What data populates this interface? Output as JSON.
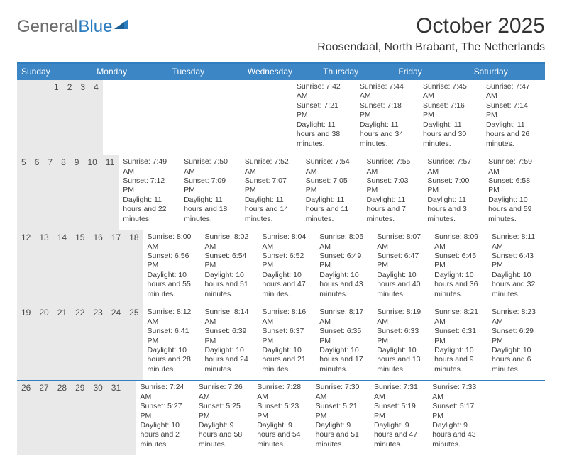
{
  "brand": {
    "gray": "General",
    "blue": "Blue"
  },
  "title": "October 2025",
  "location": "Roosendaal, North Brabant, The Netherlands",
  "colors": {
    "header_bg": "#3d86c6",
    "header_border": "#2f7fc0",
    "daynum_bg": "#e9e9e9",
    "text": "#3b3b3b"
  },
  "dow": [
    "Sunday",
    "Monday",
    "Tuesday",
    "Wednesday",
    "Thursday",
    "Friday",
    "Saturday"
  ],
  "weeks": [
    [
      {
        "n": "",
        "sr": "",
        "ss": "",
        "dl": ""
      },
      {
        "n": "",
        "sr": "",
        "ss": "",
        "dl": ""
      },
      {
        "n": "",
        "sr": "",
        "ss": "",
        "dl": ""
      },
      {
        "n": "1",
        "sr": "Sunrise: 7:42 AM",
        "ss": "Sunset: 7:21 PM",
        "dl": "Daylight: 11 hours and 38 minutes."
      },
      {
        "n": "2",
        "sr": "Sunrise: 7:44 AM",
        "ss": "Sunset: 7:18 PM",
        "dl": "Daylight: 11 hours and 34 minutes."
      },
      {
        "n": "3",
        "sr": "Sunrise: 7:45 AM",
        "ss": "Sunset: 7:16 PM",
        "dl": "Daylight: 11 hours and 30 minutes."
      },
      {
        "n": "4",
        "sr": "Sunrise: 7:47 AM",
        "ss": "Sunset: 7:14 PM",
        "dl": "Daylight: 11 hours and 26 minutes."
      }
    ],
    [
      {
        "n": "5",
        "sr": "Sunrise: 7:49 AM",
        "ss": "Sunset: 7:12 PM",
        "dl": "Daylight: 11 hours and 22 minutes."
      },
      {
        "n": "6",
        "sr": "Sunrise: 7:50 AM",
        "ss": "Sunset: 7:09 PM",
        "dl": "Daylight: 11 hours and 18 minutes."
      },
      {
        "n": "7",
        "sr": "Sunrise: 7:52 AM",
        "ss": "Sunset: 7:07 PM",
        "dl": "Daylight: 11 hours and 14 minutes."
      },
      {
        "n": "8",
        "sr": "Sunrise: 7:54 AM",
        "ss": "Sunset: 7:05 PM",
        "dl": "Daylight: 11 hours and 11 minutes."
      },
      {
        "n": "9",
        "sr": "Sunrise: 7:55 AM",
        "ss": "Sunset: 7:03 PM",
        "dl": "Daylight: 11 hours and 7 minutes."
      },
      {
        "n": "10",
        "sr": "Sunrise: 7:57 AM",
        "ss": "Sunset: 7:00 PM",
        "dl": "Daylight: 11 hours and 3 minutes."
      },
      {
        "n": "11",
        "sr": "Sunrise: 7:59 AM",
        "ss": "Sunset: 6:58 PM",
        "dl": "Daylight: 10 hours and 59 minutes."
      }
    ],
    [
      {
        "n": "12",
        "sr": "Sunrise: 8:00 AM",
        "ss": "Sunset: 6:56 PM",
        "dl": "Daylight: 10 hours and 55 minutes."
      },
      {
        "n": "13",
        "sr": "Sunrise: 8:02 AM",
        "ss": "Sunset: 6:54 PM",
        "dl": "Daylight: 10 hours and 51 minutes."
      },
      {
        "n": "14",
        "sr": "Sunrise: 8:04 AM",
        "ss": "Sunset: 6:52 PM",
        "dl": "Daylight: 10 hours and 47 minutes."
      },
      {
        "n": "15",
        "sr": "Sunrise: 8:05 AM",
        "ss": "Sunset: 6:49 PM",
        "dl": "Daylight: 10 hours and 43 minutes."
      },
      {
        "n": "16",
        "sr": "Sunrise: 8:07 AM",
        "ss": "Sunset: 6:47 PM",
        "dl": "Daylight: 10 hours and 40 minutes."
      },
      {
        "n": "17",
        "sr": "Sunrise: 8:09 AM",
        "ss": "Sunset: 6:45 PM",
        "dl": "Daylight: 10 hours and 36 minutes."
      },
      {
        "n": "18",
        "sr": "Sunrise: 8:11 AM",
        "ss": "Sunset: 6:43 PM",
        "dl": "Daylight: 10 hours and 32 minutes."
      }
    ],
    [
      {
        "n": "19",
        "sr": "Sunrise: 8:12 AM",
        "ss": "Sunset: 6:41 PM",
        "dl": "Daylight: 10 hours and 28 minutes."
      },
      {
        "n": "20",
        "sr": "Sunrise: 8:14 AM",
        "ss": "Sunset: 6:39 PM",
        "dl": "Daylight: 10 hours and 24 minutes."
      },
      {
        "n": "21",
        "sr": "Sunrise: 8:16 AM",
        "ss": "Sunset: 6:37 PM",
        "dl": "Daylight: 10 hours and 21 minutes."
      },
      {
        "n": "22",
        "sr": "Sunrise: 8:17 AM",
        "ss": "Sunset: 6:35 PM",
        "dl": "Daylight: 10 hours and 17 minutes."
      },
      {
        "n": "23",
        "sr": "Sunrise: 8:19 AM",
        "ss": "Sunset: 6:33 PM",
        "dl": "Daylight: 10 hours and 13 minutes."
      },
      {
        "n": "24",
        "sr": "Sunrise: 8:21 AM",
        "ss": "Sunset: 6:31 PM",
        "dl": "Daylight: 10 hours and 9 minutes."
      },
      {
        "n": "25",
        "sr": "Sunrise: 8:23 AM",
        "ss": "Sunset: 6:29 PM",
        "dl": "Daylight: 10 hours and 6 minutes."
      }
    ],
    [
      {
        "n": "26",
        "sr": "Sunrise: 7:24 AM",
        "ss": "Sunset: 5:27 PM",
        "dl": "Daylight: 10 hours and 2 minutes."
      },
      {
        "n": "27",
        "sr": "Sunrise: 7:26 AM",
        "ss": "Sunset: 5:25 PM",
        "dl": "Daylight: 9 hours and 58 minutes."
      },
      {
        "n": "28",
        "sr": "Sunrise: 7:28 AM",
        "ss": "Sunset: 5:23 PM",
        "dl": "Daylight: 9 hours and 54 minutes."
      },
      {
        "n": "29",
        "sr": "Sunrise: 7:30 AM",
        "ss": "Sunset: 5:21 PM",
        "dl": "Daylight: 9 hours and 51 minutes."
      },
      {
        "n": "30",
        "sr": "Sunrise: 7:31 AM",
        "ss": "Sunset: 5:19 PM",
        "dl": "Daylight: 9 hours and 47 minutes."
      },
      {
        "n": "31",
        "sr": "Sunrise: 7:33 AM",
        "ss": "Sunset: 5:17 PM",
        "dl": "Daylight: 9 hours and 43 minutes."
      },
      {
        "n": "",
        "sr": "",
        "ss": "",
        "dl": ""
      }
    ]
  ]
}
